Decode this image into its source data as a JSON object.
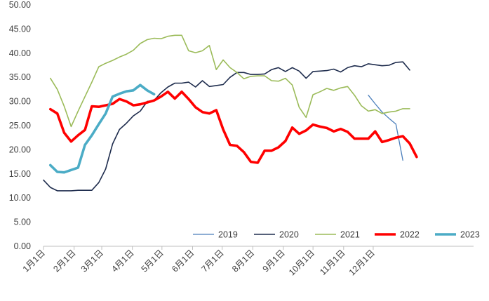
{
  "chart_data": {
    "type": "line",
    "title": "",
    "xlabel": "",
    "ylabel": "",
    "ylim": [
      0,
      50
    ],
    "yticks": [
      "0.00",
      "5.00",
      "10.00",
      "15.00",
      "20.00",
      "25.00",
      "30.00",
      "35.00",
      "40.00",
      "45.00",
      "50.00"
    ],
    "xtick_labels": [
      "1月1日",
      "2月1日",
      "3月1日",
      "4月1日",
      "5月1日",
      "6月1日",
      "7月1日",
      "8月1日",
      "9月1日",
      "10月1日",
      "11月1日",
      "12月1日"
    ],
    "grid": false,
    "legend_position": "bottom-right",
    "series": [
      {
        "name": "2019",
        "color": "#4a7ebb",
        "width": 1.3,
        "values": [
          [
            48,
            31.3
          ],
          [
            49,
            29.5
          ],
          [
            50,
            27.8
          ],
          [
            51,
            26.5
          ],
          [
            52,
            25.3
          ],
          [
            53,
            17.8
          ]
        ]
      },
      {
        "name": "2020",
        "color": "#1f2d4e",
        "width": 1.6,
        "values": [
          [
            1,
            13.7
          ],
          [
            2,
            12.2
          ],
          [
            3,
            11.5
          ],
          [
            4,
            11.5
          ],
          [
            5,
            11.5
          ],
          [
            6,
            11.6
          ],
          [
            7,
            11.6
          ],
          [
            8,
            11.6
          ],
          [
            9,
            13.2
          ],
          [
            10,
            16.0
          ],
          [
            11,
            21.2
          ],
          [
            12,
            24.2
          ],
          [
            13,
            25.5
          ],
          [
            14,
            27.0
          ],
          [
            15,
            28.0
          ],
          [
            16,
            30.0
          ],
          [
            17,
            30.2
          ],
          [
            18,
            31.8
          ],
          [
            19,
            33.0
          ],
          [
            20,
            33.8
          ],
          [
            21,
            33.8
          ],
          [
            22,
            34.0
          ],
          [
            23,
            33.0
          ],
          [
            24,
            34.3
          ],
          [
            25,
            33.1
          ],
          [
            26,
            33.3
          ],
          [
            27,
            33.5
          ],
          [
            28,
            35.0
          ],
          [
            29,
            36.0
          ],
          [
            30,
            36.0
          ],
          [
            31,
            35.6
          ],
          [
            32,
            35.6
          ],
          [
            33,
            35.7
          ],
          [
            34,
            36.6
          ],
          [
            35,
            37.0
          ],
          [
            36,
            36.2
          ],
          [
            37,
            37.0
          ],
          [
            38,
            36.3
          ],
          [
            39,
            34.8
          ],
          [
            40,
            36.2
          ],
          [
            41,
            36.3
          ],
          [
            42,
            36.4
          ],
          [
            43,
            36.7
          ],
          [
            44,
            36.1
          ],
          [
            45,
            37.0
          ],
          [
            46,
            37.4
          ],
          [
            47,
            37.2
          ],
          [
            48,
            37.8
          ],
          [
            49,
            37.6
          ],
          [
            50,
            37.4
          ],
          [
            51,
            37.5
          ],
          [
            52,
            38.1
          ],
          [
            53,
            38.2
          ],
          [
            54,
            36.5
          ]
        ]
      },
      {
        "name": "2021",
        "color": "#9bbb59",
        "width": 1.6,
        "values": [
          [
            2,
            34.8
          ],
          [
            3,
            32.5
          ],
          [
            4,
            29.0
          ],
          [
            5,
            24.8
          ],
          [
            6,
            28.0
          ],
          [
            7,
            31.0
          ],
          [
            8,
            34.0
          ],
          [
            9,
            37.2
          ],
          [
            10,
            37.9
          ],
          [
            11,
            38.5
          ],
          [
            12,
            39.2
          ],
          [
            13,
            39.8
          ],
          [
            14,
            40.6
          ],
          [
            15,
            42.0
          ],
          [
            16,
            42.8
          ],
          [
            17,
            43.1
          ],
          [
            18,
            43.0
          ],
          [
            19,
            43.5
          ],
          [
            20,
            43.7
          ],
          [
            21,
            43.7
          ],
          [
            22,
            40.5
          ],
          [
            23,
            40.1
          ],
          [
            24,
            40.5
          ],
          [
            25,
            41.6
          ],
          [
            26,
            36.6
          ],
          [
            27,
            38.6
          ],
          [
            28,
            37.0
          ],
          [
            29,
            36.0
          ],
          [
            30,
            34.7
          ],
          [
            31,
            35.2
          ],
          [
            32,
            35.3
          ],
          [
            33,
            35.3
          ],
          [
            34,
            34.3
          ],
          [
            35,
            34.2
          ],
          [
            36,
            34.8
          ],
          [
            37,
            33.4
          ],
          [
            38,
            28.8
          ],
          [
            39,
            26.7
          ],
          [
            40,
            31.4
          ],
          [
            41,
            32.0
          ],
          [
            42,
            32.7
          ],
          [
            43,
            32.3
          ],
          [
            44,
            32.8
          ],
          [
            45,
            33.1
          ],
          [
            46,
            31.3
          ],
          [
            47,
            29.1
          ],
          [
            48,
            28.0
          ],
          [
            49,
            28.3
          ],
          [
            50,
            27.5
          ],
          [
            51,
            27.8
          ],
          [
            52,
            28.0
          ],
          [
            53,
            28.5
          ],
          [
            54,
            28.5
          ]
        ]
      },
      {
        "name": "2022",
        "color": "#ff0000",
        "width": 3.6,
        "values": [
          [
            2,
            28.4
          ],
          [
            3,
            27.5
          ],
          [
            4,
            23.5
          ],
          [
            5,
            21.7
          ],
          [
            6,
            23.0
          ],
          [
            7,
            24.1
          ],
          [
            8,
            29.0
          ],
          [
            9,
            28.9
          ],
          [
            10,
            29.2
          ],
          [
            11,
            29.5
          ],
          [
            12,
            30.5
          ],
          [
            13,
            30.0
          ],
          [
            14,
            29.2
          ],
          [
            15,
            29.4
          ],
          [
            16,
            29.8
          ],
          [
            17,
            30.2
          ],
          [
            18,
            31.0
          ],
          [
            19,
            32.0
          ],
          [
            20,
            30.6
          ],
          [
            21,
            32.0
          ],
          [
            22,
            30.5
          ],
          [
            23,
            28.8
          ],
          [
            24,
            27.8
          ],
          [
            25,
            27.5
          ],
          [
            26,
            28.2
          ],
          [
            27,
            24.2
          ],
          [
            28,
            21.0
          ],
          [
            29,
            20.8
          ],
          [
            30,
            19.5
          ],
          [
            31,
            17.5
          ],
          [
            32,
            17.3
          ],
          [
            33,
            19.8
          ],
          [
            34,
            19.8
          ],
          [
            35,
            20.5
          ],
          [
            36,
            21.8
          ],
          [
            37,
            24.6
          ],
          [
            38,
            23.3
          ],
          [
            39,
            24.0
          ],
          [
            40,
            25.2
          ],
          [
            41,
            24.8
          ],
          [
            42,
            24.5
          ],
          [
            43,
            23.8
          ],
          [
            44,
            24.3
          ],
          [
            45,
            23.7
          ],
          [
            46,
            22.3
          ],
          [
            47,
            22.3
          ],
          [
            48,
            22.3
          ],
          [
            49,
            23.8
          ],
          [
            50,
            21.6
          ],
          [
            51,
            22.0
          ],
          [
            52,
            22.5
          ],
          [
            53,
            22.8
          ],
          [
            54,
            21.3
          ],
          [
            55,
            18.5
          ]
        ]
      },
      {
        "name": "2023",
        "color": "#4bacc6",
        "width": 3.6,
        "values": [
          [
            2,
            16.8
          ],
          [
            3,
            15.4
          ],
          [
            4,
            15.3
          ],
          [
            5,
            15.8
          ],
          [
            6,
            16.3
          ],
          [
            7,
            21.0
          ],
          [
            8,
            23.0
          ],
          [
            9,
            25.3
          ],
          [
            10,
            27.5
          ],
          [
            11,
            31.0
          ],
          [
            12,
            31.6
          ],
          [
            13,
            32.1
          ],
          [
            14,
            32.3
          ],
          [
            15,
            33.4
          ],
          [
            16,
            32.3
          ],
          [
            17,
            31.5
          ]
        ]
      }
    ]
  }
}
